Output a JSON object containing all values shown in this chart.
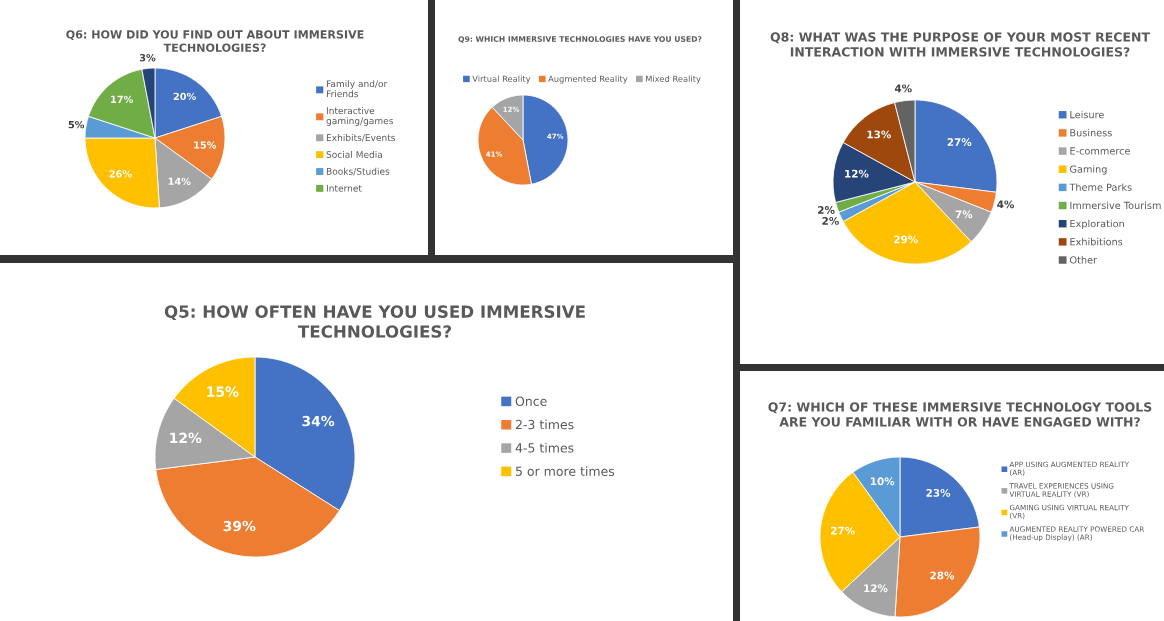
{
  "chart_data": [
    {
      "type": "pie",
      "title": "Q6: HOW DID YOU FIND OUT ABOUT IMMERSIVE TECHNOLOGIES?",
      "categories": [
        "Family and/or Friends",
        "Interactive gaming/games",
        "Exhibits/Events",
        "Social Media",
        "Books/Studies",
        "Internet",
        null
      ],
      "values": [
        20,
        15,
        14,
        26,
        5,
        17,
        3
      ],
      "value_labels": [
        "20%",
        "15%",
        "14%",
        "26%",
        "5%",
        "17%",
        "3%"
      ],
      "colors": [
        "#4472c4",
        "#ed7d31",
        "#a5a5a5",
        "#ffc000",
        "#5b9bd5",
        "#70ad47",
        "#264478"
      ],
      "legend": "right"
    },
    {
      "type": "pie",
      "title": "Q9: WHICH IMMERSIVE TECHNOLOGIES HAVE YOU USED?",
      "categories": [
        "Virtual Reality",
        "Augmented Reality",
        "Mixed Reality"
      ],
      "values": [
        47,
        41,
        12
      ],
      "value_labels": [
        "47%",
        "41%",
        "12%"
      ],
      "colors": [
        "#4472c4",
        "#ed7d31",
        "#a5a5a5"
      ],
      "legend": "top"
    },
    {
      "type": "pie",
      "title": "Q8: WHAT WAS THE PURPOSE OF YOUR MOST RECENT INTERACTION WITH IMMERSIVE TECHNOLOGIES?",
      "categories": [
        "Leisure",
        "Business",
        "E-commerce",
        "Gaming",
        "Theme Parks",
        "Immersive Tourism",
        "Exploration",
        "Exhibitions",
        "Other"
      ],
      "values": [
        27,
        4,
        7,
        29,
        2,
        2,
        12,
        13,
        4
      ],
      "value_labels": [
        "27%",
        "4%",
        "7%",
        "29%",
        "2%",
        "2%",
        "12%",
        "13%",
        "4%"
      ],
      "colors": [
        "#4472c4",
        "#ed7d31",
        "#a5a5a5",
        "#ffc000",
        "#5b9bd5",
        "#70ad47",
        "#264478",
        "#9e480e",
        "#636363"
      ],
      "legend": "right"
    },
    {
      "type": "pie",
      "title": "Q5: HOW OFTEN HAVE YOU USED IMMERSIVE TECHNOLOGIES?",
      "categories": [
        "Once",
        "2-3 times",
        "4-5 times",
        "5 or more times"
      ],
      "values": [
        34,
        39,
        12,
        15
      ],
      "value_labels": [
        "34%",
        "39%",
        "12%",
        "15%"
      ],
      "colors": [
        "#4472c4",
        "#ed7d31",
        "#a5a5a5",
        "#ffc000"
      ],
      "legend": "right"
    },
    {
      "type": "pie",
      "title": "Q7: WHICH OF THESE IMMERSIVE TECHNOLOGY TOOLS ARE YOU FAMILIAR WITH OR HAVE ENGAGED WITH?",
      "categories": [
        "APP USING AUGMENTED REALITY (AR)",
        null,
        "TRAVEL EXPERIENCES USING VIRTUAL REALITY (VR)",
        "GAMING USING VIRTUAL REALITY (VR)",
        "AUGMENTED REALITY POWERED CAR (Head-up Display) (AR)"
      ],
      "values": [
        23,
        28,
        12,
        27,
        10
      ],
      "value_labels": [
        "23%",
        "28%",
        "12%",
        "27%",
        "10%"
      ],
      "colors": [
        "#4472c4",
        "#ed7d31",
        "#a5a5a5",
        "#ffc000",
        "#5b9bd5"
      ],
      "legend": "right"
    }
  ]
}
